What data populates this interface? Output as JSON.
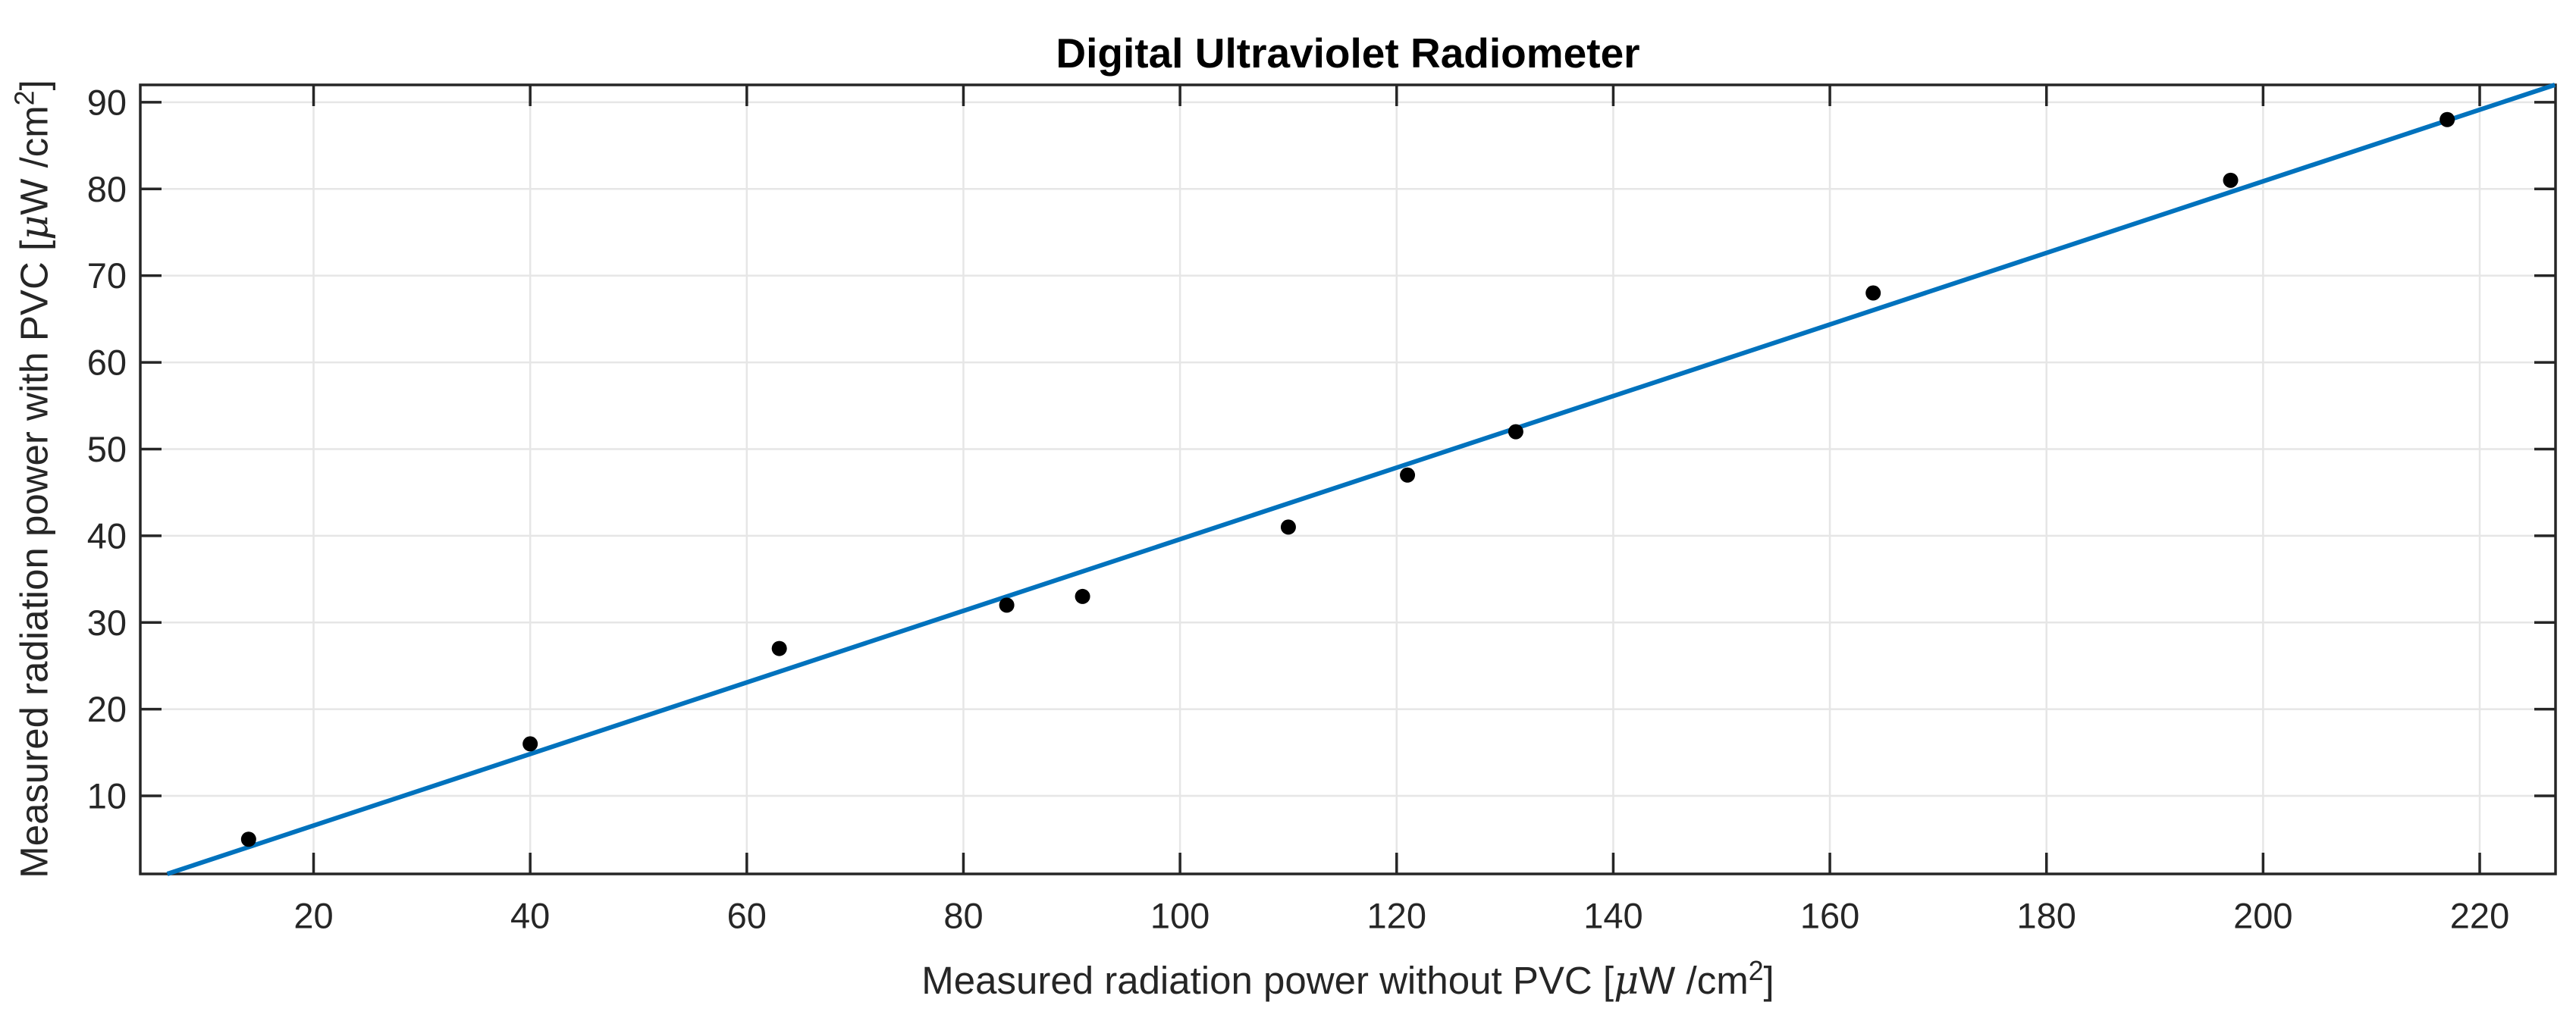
{
  "chart_data": {
    "type": "scatter",
    "title": "Digital Ultraviolet Radiometer",
    "xlabel": {
      "prefix": "Measured radiation power without PVC [",
      "mu": "μ",
      "mid": "W /cm",
      "sup": "2",
      "suffix": "]"
    },
    "ylabel": {
      "prefix": "Measured radiation power with PVC [",
      "mu": "μ",
      "mid": "W /cm",
      "sup": "2",
      "suffix": "]"
    },
    "points": {
      "x": [
        14,
        40,
        63,
        84,
        91,
        110,
        121,
        131,
        164,
        197,
        217
      ],
      "y": [
        5,
        16,
        27,
        32,
        33,
        41,
        47,
        52,
        68,
        81,
        88
      ]
    },
    "fit_line": {
      "slope": 0.4128,
      "intercept": -1.68
    },
    "xlim": [
      4,
      227
    ],
    "ylim": [
      1,
      92
    ],
    "x_ticks": [
      20,
      40,
      60,
      80,
      100,
      120,
      140,
      160,
      180,
      200,
      220
    ],
    "y_ticks": [
      10,
      20,
      30,
      40,
      50,
      60,
      70,
      80,
      90
    ],
    "grid": true,
    "legend_position": "none",
    "colors": {
      "line": "#0072BD",
      "marker": "#000000",
      "grid": "#e6e6e6",
      "axis": "#262626",
      "tick_label": "#262626",
      "title": "#000000"
    }
  }
}
